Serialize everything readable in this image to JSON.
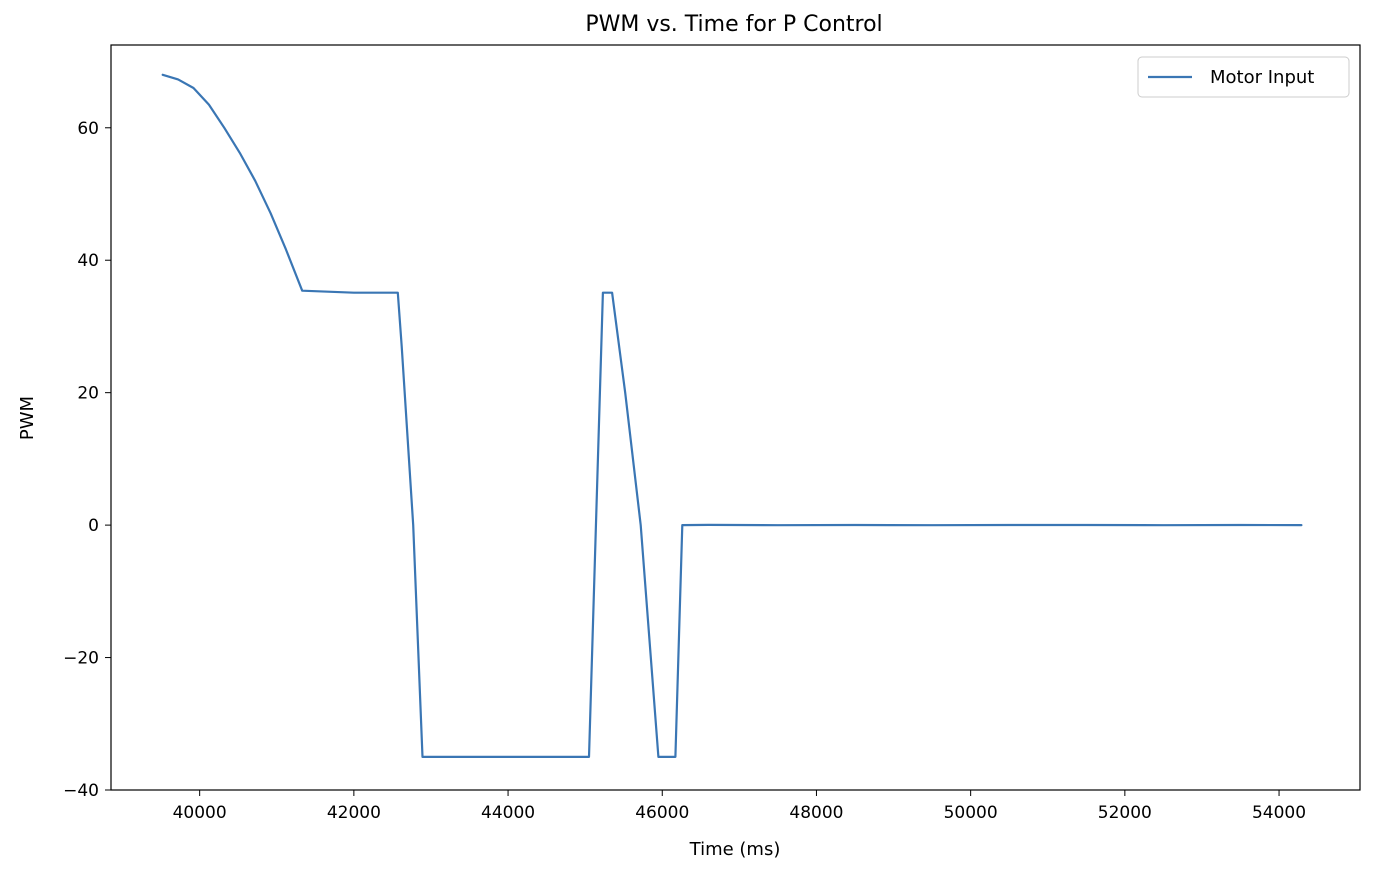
{
  "chart_data": {
    "type": "line",
    "title": "PWM vs. Time for P Control",
    "xlabel": "Time (ms)",
    "ylabel": "PWM",
    "xlim": [
      38850,
      55050
    ],
    "ylim": [
      -40,
      72.5
    ],
    "xticks": [
      40000,
      42000,
      44000,
      46000,
      48000,
      50000,
      52000,
      54000
    ],
    "yticks": [
      -40,
      -20,
      0,
      20,
      40,
      60
    ],
    "grid": false,
    "legend_position": "top-right",
    "series": [
      {
        "name": "Motor Input",
        "color": "#3a76b4",
        "x": [
          39520,
          39720,
          39920,
          40120,
          40320,
          40520,
          40720,
          40920,
          41120,
          41330,
          42000,
          42570,
          42620,
          42770,
          42890,
          43500,
          44500,
          45050,
          45230,
          45350,
          45520,
          45720,
          45950,
          46170,
          46260,
          46600,
          47500,
          48500,
          49500,
          50500,
          51500,
          52500,
          53500,
          54290
        ],
        "y": [
          68,
          67.3,
          66,
          63.5,
          60,
          56.2,
          52,
          47.1,
          41.6,
          35.4,
          35.1,
          35.1,
          27,
          0,
          -35,
          -35,
          -35,
          -35,
          35.1,
          35.1,
          20,
          0,
          -35,
          -35,
          0,
          0.03,
          -0.02,
          0.02,
          -0.02,
          0.01,
          0.02,
          -0.02,
          0.01,
          0
        ]
      }
    ]
  }
}
